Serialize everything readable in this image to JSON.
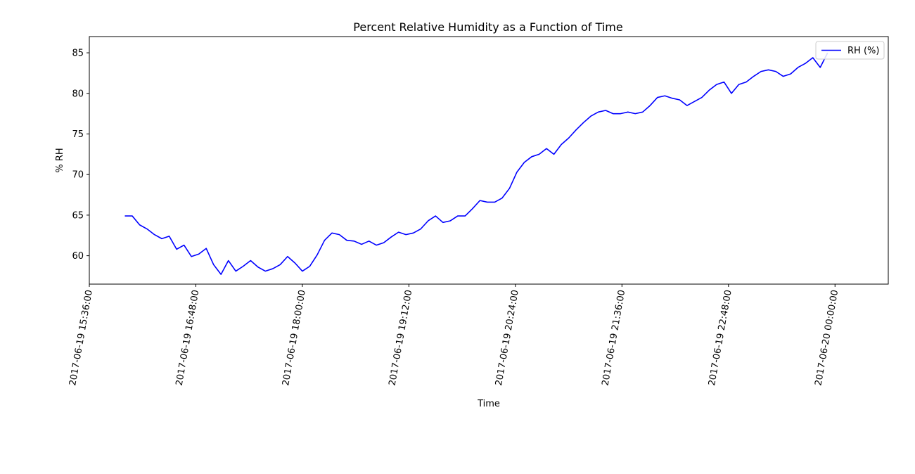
{
  "chart_data": {
    "type": "line",
    "title": "Percent Relative Humidity as a Function of Time",
    "xlabel": "Time",
    "ylabel": "% RH",
    "xlim": [
      "2017-06-19 15:36:00",
      "2017-06-20 00:36:00"
    ],
    "ylim": [
      56.5,
      87
    ],
    "x_ticks": [
      "2017-06-19 15:36:00",
      "2017-06-19 16:48:00",
      "2017-06-19 18:00:00",
      "2017-06-19 19:12:00",
      "2017-06-19 20:24:00",
      "2017-06-19 21:36:00",
      "2017-06-19 22:48:00",
      "2017-06-20 00:00:00"
    ],
    "y_ticks": [
      60,
      65,
      70,
      75,
      80,
      85
    ],
    "grid": false,
    "legend_position": "top-right",
    "series": [
      {
        "name": "RH (%)",
        "color": "#0000ff",
        "points": [
          [
            "2017-06-19 16:00:00",
            64.9
          ],
          [
            "2017-06-19 16:05:00",
            64.9
          ],
          [
            "2017-06-19 16:10:00",
            63.8
          ],
          [
            "2017-06-19 16:15:00",
            63.3
          ],
          [
            "2017-06-19 16:20:00",
            62.6
          ],
          [
            "2017-06-19 16:25:00",
            62.1
          ],
          [
            "2017-06-19 16:30:00",
            62.4
          ],
          [
            "2017-06-19 16:35:00",
            60.8
          ],
          [
            "2017-06-19 16:40:00",
            61.3
          ],
          [
            "2017-06-19 16:45:00",
            59.9
          ],
          [
            "2017-06-19 16:50:00",
            60.2
          ],
          [
            "2017-06-19 16:55:00",
            60.9
          ],
          [
            "2017-06-19 17:00:00",
            58.9
          ],
          [
            "2017-06-19 17:05:00",
            57.7
          ],
          [
            "2017-06-19 17:10:00",
            59.4
          ],
          [
            "2017-06-19 17:15:00",
            58.1
          ],
          [
            "2017-06-19 17:20:00",
            58.7
          ],
          [
            "2017-06-19 17:25:00",
            59.4
          ],
          [
            "2017-06-19 17:30:00",
            58.6
          ],
          [
            "2017-06-19 17:35:00",
            58.1
          ],
          [
            "2017-06-19 17:40:00",
            58.4
          ],
          [
            "2017-06-19 17:45:00",
            58.9
          ],
          [
            "2017-06-19 17:50:00",
            59.9
          ],
          [
            "2017-06-19 17:55:00",
            59.1
          ],
          [
            "2017-06-19 18:00:00",
            58.1
          ],
          [
            "2017-06-19 18:05:00",
            58.7
          ],
          [
            "2017-06-19 18:10:00",
            60.1
          ],
          [
            "2017-06-19 18:15:00",
            61.9
          ],
          [
            "2017-06-19 18:20:00",
            62.8
          ],
          [
            "2017-06-19 18:25:00",
            62.6
          ],
          [
            "2017-06-19 18:30:00",
            61.9
          ],
          [
            "2017-06-19 18:35:00",
            61.8
          ],
          [
            "2017-06-19 18:40:00",
            61.4
          ],
          [
            "2017-06-19 18:45:00",
            61.8
          ],
          [
            "2017-06-19 18:50:00",
            61.3
          ],
          [
            "2017-06-19 18:55:00",
            61.6
          ],
          [
            "2017-06-19 19:00:00",
            62.3
          ],
          [
            "2017-06-19 19:05:00",
            62.9
          ],
          [
            "2017-06-19 19:10:00",
            62.6
          ],
          [
            "2017-06-19 19:15:00",
            62.8
          ],
          [
            "2017-06-19 19:20:00",
            63.3
          ],
          [
            "2017-06-19 19:25:00",
            64.3
          ],
          [
            "2017-06-19 19:30:00",
            64.9
          ],
          [
            "2017-06-19 19:35:00",
            64.1
          ],
          [
            "2017-06-19 19:40:00",
            64.3
          ],
          [
            "2017-06-19 19:45:00",
            64.9
          ],
          [
            "2017-06-19 19:50:00",
            64.9
          ],
          [
            "2017-06-19 19:55:00",
            65.8
          ],
          [
            "2017-06-19 20:00:00",
            66.8
          ],
          [
            "2017-06-19 20:05:00",
            66.6
          ],
          [
            "2017-06-19 20:10:00",
            66.6
          ],
          [
            "2017-06-19 20:15:00",
            67.1
          ],
          [
            "2017-06-19 20:20:00",
            68.3
          ],
          [
            "2017-06-19 20:25:00",
            70.3
          ],
          [
            "2017-06-19 20:30:00",
            71.5
          ],
          [
            "2017-06-19 20:35:00",
            72.2
          ],
          [
            "2017-06-19 20:40:00",
            72.5
          ],
          [
            "2017-06-19 20:45:00",
            73.2
          ],
          [
            "2017-06-19 20:50:00",
            72.5
          ],
          [
            "2017-06-19 20:55:00",
            73.7
          ],
          [
            "2017-06-19 21:00:00",
            74.5
          ],
          [
            "2017-06-19 21:05:00",
            75.5
          ],
          [
            "2017-06-19 21:10:00",
            76.4
          ],
          [
            "2017-06-19 21:15:00",
            77.2
          ],
          [
            "2017-06-19 21:20:00",
            77.7
          ],
          [
            "2017-06-19 21:25:00",
            77.9
          ],
          [
            "2017-06-19 21:30:00",
            77.5
          ],
          [
            "2017-06-19 21:35:00",
            77.5
          ],
          [
            "2017-06-19 21:40:00",
            77.7
          ],
          [
            "2017-06-19 21:45:00",
            77.5
          ],
          [
            "2017-06-19 21:50:00",
            77.7
          ],
          [
            "2017-06-19 21:55:00",
            78.5
          ],
          [
            "2017-06-19 22:00:00",
            79.5
          ],
          [
            "2017-06-19 22:05:00",
            79.7
          ],
          [
            "2017-06-19 22:10:00",
            79.4
          ],
          [
            "2017-06-19 22:15:00",
            79.2
          ],
          [
            "2017-06-19 22:20:00",
            78.5
          ],
          [
            "2017-06-19 22:25:00",
            79.0
          ],
          [
            "2017-06-19 22:30:00",
            79.5
          ],
          [
            "2017-06-19 22:35:00",
            80.4
          ],
          [
            "2017-06-19 22:40:00",
            81.1
          ],
          [
            "2017-06-19 22:45:00",
            81.4
          ],
          [
            "2017-06-19 22:50:00",
            80.0
          ],
          [
            "2017-06-19 22:55:00",
            81.1
          ],
          [
            "2017-06-19 23:00:00",
            81.4
          ],
          [
            "2017-06-19 23:05:00",
            82.1
          ],
          [
            "2017-06-19 23:10:00",
            82.7
          ],
          [
            "2017-06-19 23:15:00",
            82.9
          ],
          [
            "2017-06-19 23:20:00",
            82.7
          ],
          [
            "2017-06-19 23:25:00",
            82.1
          ],
          [
            "2017-06-19 23:30:00",
            82.4
          ],
          [
            "2017-06-19 23:35:00",
            83.2
          ],
          [
            "2017-06-19 23:40:00",
            83.7
          ],
          [
            "2017-06-19 23:45:00",
            84.4
          ],
          [
            "2017-06-19 23:50:00",
            83.2
          ],
          [
            "2017-06-19 23:55:00",
            85.0
          ]
        ]
      }
    ]
  }
}
